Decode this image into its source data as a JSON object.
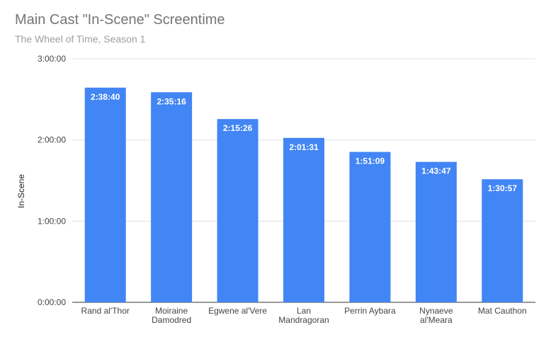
{
  "chart_data": {
    "type": "bar",
    "title": "Main Cast \"In-Scene\" Screentime",
    "subtitle": "The Wheel of Time, Season 1",
    "xlabel": "",
    "ylabel": "In-Scene",
    "categories": [
      [
        "Rand al'Thor"
      ],
      [
        "Moiraine",
        "Damodred"
      ],
      [
        "Egwene al'Vere"
      ],
      [
        "Lan",
        "Mandragoran"
      ],
      [
        "Perrin Aybara"
      ],
      [
        "Nynaeve",
        "al'Meara"
      ],
      [
        "Mat Cauthon"
      ]
    ],
    "values_seconds": [
      9520,
      9316,
      8126,
      7291,
      6669,
      6227,
      5457
    ],
    "data_labels": [
      "2:38:40",
      "2:35:16",
      "2:15:26",
      "2:01:31",
      "1:51:09",
      "1:43:47",
      "1:30:57"
    ],
    "ylim_seconds": [
      0,
      10800
    ],
    "yticks_seconds": [
      0,
      3600,
      7200,
      10800
    ],
    "ytick_labels": [
      "0:00:00",
      "1:00:00",
      "2:00:00",
      "3:00:00"
    ],
    "grid": true,
    "colors": {
      "bar": "#4285f4",
      "grid": "#e0e0e0",
      "axis": "#333333"
    }
  }
}
